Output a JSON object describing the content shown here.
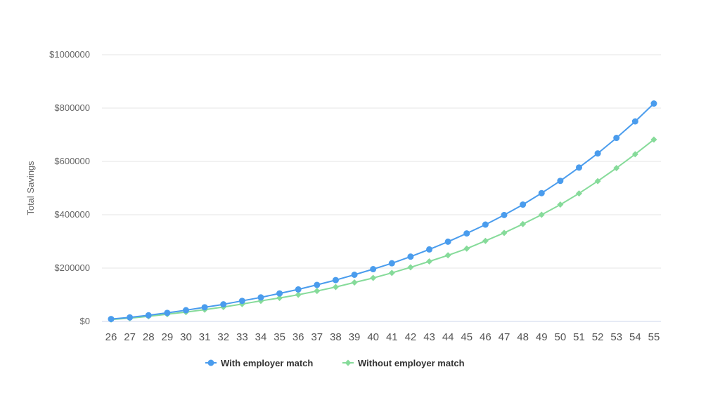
{
  "chart_data": {
    "type": "line",
    "title": "",
    "xlabel": "",
    "ylabel": "Total Savings",
    "ylim": [
      0,
      1000000
    ],
    "yticks": [
      "$0",
      "$200000",
      "$400000",
      "$600000",
      "$800000",
      "$1000000"
    ],
    "ytick_values": [
      0,
      200000,
      400000,
      600000,
      800000,
      1000000
    ],
    "categories": [
      "26",
      "27",
      "28",
      "29",
      "30",
      "31",
      "32",
      "33",
      "34",
      "35",
      "36",
      "37",
      "38",
      "39",
      "40",
      "41",
      "42",
      "43",
      "44",
      "45",
      "46",
      "47",
      "48",
      "49",
      "50",
      "51",
      "52",
      "53",
      "54",
      "55"
    ],
    "grid": true,
    "legend_position": "bottom-center",
    "series": [
      {
        "name": "With employer match",
        "color": "#4a9ced",
        "marker": "circle",
        "values": [
          9000,
          15000,
          23000,
          32000,
          42000,
          53000,
          64000,
          77000,
          90000,
          105000,
          120000,
          137000,
          155000,
          175000,
          196000,
          218000,
          243000,
          270000,
          299000,
          330000,
          363000,
          399000,
          438000,
          481000,
          527000,
          577000,
          630000,
          688000,
          750000,
          817000
        ]
      },
      {
        "name": "Without employer match",
        "color": "#86db9a",
        "marker": "diamond",
        "values": [
          7000,
          12000,
          19000,
          27000,
          35000,
          44000,
          54000,
          65000,
          77000,
          88000,
          100000,
          114000,
          129000,
          146000,
          163000,
          182000,
          203000,
          225000,
          248000,
          273000,
          302000,
          332000,
          365000,
          400000,
          438000,
          480000,
          526000,
          575000,
          627000,
          682000
        ]
      }
    ]
  }
}
